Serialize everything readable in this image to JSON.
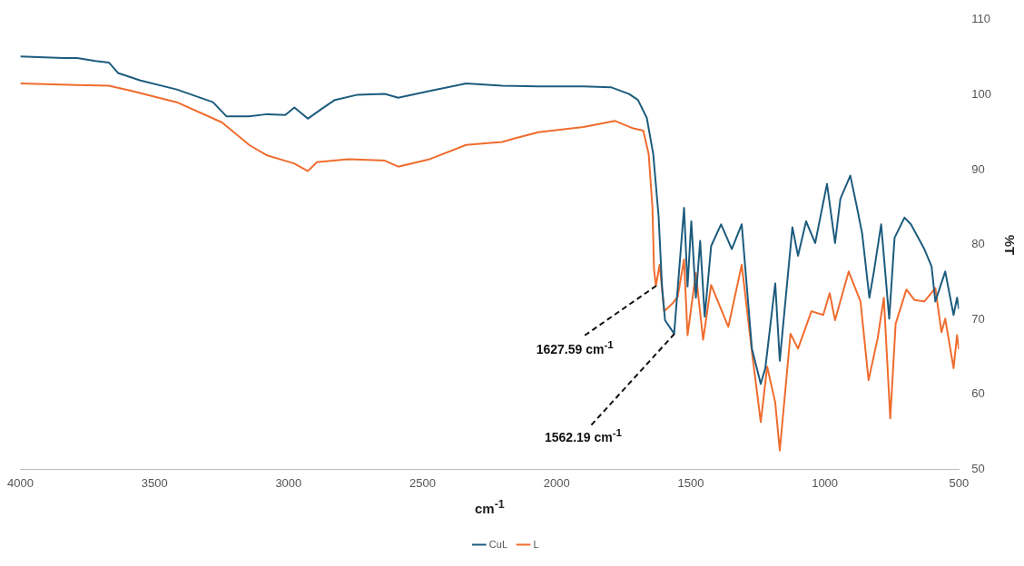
{
  "chart_data": {
    "type": "line",
    "xlabel": "cm$^{-1}$",
    "ylabel": "%T",
    "xlim": [
      4000,
      500
    ],
    "xticks": [
      4000,
      3500,
      3000,
      2500,
      2000,
      1500,
      1000,
      500
    ],
    "ylim": [
      50,
      110
    ],
    "yticks": [
      50,
      60,
      70,
      80,
      90,
      100,
      110
    ],
    "grid": false,
    "legend": "bottom",
    "marker": "none",
    "line_style": "solid",
    "annotations": [
      {
        "text": "1627.59 cm$^{-1}$",
        "x": 1627.59,
        "y": 74.5
      },
      {
        "text": "1562.19 cm$^{-1}$",
        "x": 1562.19,
        "y": 68.1
      }
    ],
    "series": [
      {
        "name": "CuL",
        "color": "#1d5c7e",
        "x": [
          4000,
          3838,
          3788,
          3720,
          3670,
          3636,
          3552,
          3417,
          3282,
          3231,
          3147,
          3080,
          3012,
          2978,
          2928,
          2877,
          2827,
          2742,
          2641,
          2591,
          2473,
          2338,
          2203,
          2068,
          1900,
          1798,
          1730,
          1697,
          1664,
          1640,
          1620,
          1607,
          1596,
          1562,
          1525,
          1512,
          1498,
          1481,
          1465,
          1448,
          1424,
          1387,
          1347,
          1310,
          1272,
          1239,
          1222,
          1185,
          1168,
          1121,
          1100,
          1070,
          1036,
          992,
          962,
          942,
          905,
          881,
          861,
          834,
          817,
          790,
          760,
          740,
          703,
          679,
          629,
          602,
          588,
          551,
          520,
          507,
          500
        ],
        "values": [
          105.1,
          104.9,
          104.9,
          104.5,
          104.3,
          102.9,
          101.9,
          100.7,
          99.0,
          97.1,
          97.1,
          97.4,
          97.3,
          98.3,
          96.8,
          98.1,
          99.3,
          100.0,
          100.1,
          99.6,
          100.5,
          101.5,
          101.2,
          101.1,
          101.1,
          101.0,
          100.1,
          99.3,
          96.9,
          92.1,
          83.8,
          74.3,
          69.9,
          68.1,
          84.9,
          74.4,
          83.1,
          72.9,
          80.5,
          70.4,
          79.8,
          82.7,
          79.4,
          82.7,
          66.1,
          61.4,
          63.5,
          74.8,
          64.5,
          82.3,
          78.5,
          83.1,
          80.2,
          88.1,
          80.2,
          86.1,
          89.2,
          85.1,
          81.5,
          72.9,
          76.4,
          82.7,
          70.1,
          80.9,
          83.6,
          82.7,
          79.4,
          77.1,
          72.4,
          76.4,
          70.6,
          72.9,
          71.4
        ]
      },
      {
        "name": "L",
        "color": "#ef6c2e",
        "x": [
          4000,
          3788,
          3670,
          3585,
          3417,
          3248,
          3147,
          3080,
          2978,
          2928,
          2894,
          2776,
          2641,
          2591,
          2473,
          2338,
          2203,
          2153,
          2068,
          1900,
          1782,
          1714,
          1677,
          1657,
          1643,
          1637,
          1630,
          1616,
          1599,
          1569,
          1549,
          1525,
          1512,
          1481,
          1454,
          1424,
          1360,
          1310,
          1272,
          1239,
          1215,
          1185,
          1168,
          1128,
          1100,
          1050,
          1006,
          982,
          962,
          911,
          867,
          837,
          803,
          780,
          756,
          736,
          696,
          666,
          629,
          588,
          565,
          551,
          520,
          507,
          500
        ],
        "values": [
          101.5,
          101.3,
          101.2,
          100.5,
          99.0,
          96.3,
          93.3,
          91.9,
          90.8,
          89.8,
          91.0,
          91.4,
          91.2,
          90.4,
          91.4,
          93.3,
          93.7,
          94.2,
          95.0,
          95.7,
          96.5,
          95.5,
          95.2,
          92.1,
          85.0,
          76.7,
          74.5,
          77.3,
          71.1,
          72.1,
          73.0,
          78.0,
          67.9,
          76.2,
          67.3,
          74.6,
          69.0,
          77.3,
          65.7,
          56.3,
          63.7,
          58.9,
          52.5,
          68.1,
          66.1,
          71.1,
          70.6,
          73.5,
          69.9,
          76.4,
          72.4,
          61.9,
          67.5,
          72.9,
          56.8,
          69.4,
          74.0,
          72.6,
          72.4,
          74.2,
          68.3,
          70.1,
          63.5,
          67.9,
          66.0
        ]
      }
    ]
  }
}
